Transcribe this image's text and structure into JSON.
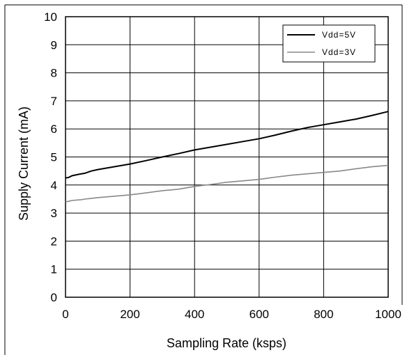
{
  "chart_data": {
    "type": "line",
    "xlabel": "Sampling Rate (ksps)",
    "ylabel": "Supply Current (mA)",
    "xlim": [
      0,
      1000
    ],
    "ylim": [
      0,
      10
    ],
    "x_ticks": [
      "0",
      "200",
      "400",
      "600",
      "800",
      "1000"
    ],
    "y_ticks": [
      "0",
      "1",
      "2",
      "3",
      "4",
      "5",
      "6",
      "7",
      "8",
      "9",
      "10"
    ],
    "grid": true,
    "legend_position": "top-right",
    "series": [
      {
        "name": "Vdd=5V",
        "color": "#000000",
        "points": [
          [
            0,
            4.25
          ],
          [
            10,
            4.27
          ],
          [
            20,
            4.33
          ],
          [
            40,
            4.38
          ],
          [
            60,
            4.42
          ],
          [
            80,
            4.5
          ],
          [
            100,
            4.55
          ],
          [
            150,
            4.65
          ],
          [
            200,
            4.75
          ],
          [
            250,
            4.87
          ],
          [
            300,
            5.0
          ],
          [
            350,
            5.12
          ],
          [
            400,
            5.25
          ],
          [
            450,
            5.35
          ],
          [
            500,
            5.45
          ],
          [
            550,
            5.55
          ],
          [
            600,
            5.65
          ],
          [
            650,
            5.78
          ],
          [
            700,
            5.92
          ],
          [
            750,
            6.05
          ],
          [
            800,
            6.15
          ],
          [
            850,
            6.25
          ],
          [
            900,
            6.35
          ],
          [
            950,
            6.48
          ],
          [
            1000,
            6.62
          ]
        ]
      },
      {
        "name": "Vdd=3V",
        "color": "#888888",
        "points": [
          [
            0,
            3.4
          ],
          [
            10,
            3.42
          ],
          [
            20,
            3.45
          ],
          [
            50,
            3.48
          ],
          [
            60,
            3.5
          ],
          [
            100,
            3.55
          ],
          [
            150,
            3.6
          ],
          [
            200,
            3.65
          ],
          [
            250,
            3.72
          ],
          [
            300,
            3.8
          ],
          [
            350,
            3.85
          ],
          [
            400,
            3.95
          ],
          [
            450,
            4.02
          ],
          [
            500,
            4.1
          ],
          [
            550,
            4.15
          ],
          [
            600,
            4.2
          ],
          [
            650,
            4.28
          ],
          [
            700,
            4.35
          ],
          [
            750,
            4.4
          ],
          [
            800,
            4.45
          ],
          [
            850,
            4.5
          ],
          [
            900,
            4.58
          ],
          [
            950,
            4.65
          ],
          [
            1000,
            4.7
          ]
        ]
      }
    ]
  }
}
